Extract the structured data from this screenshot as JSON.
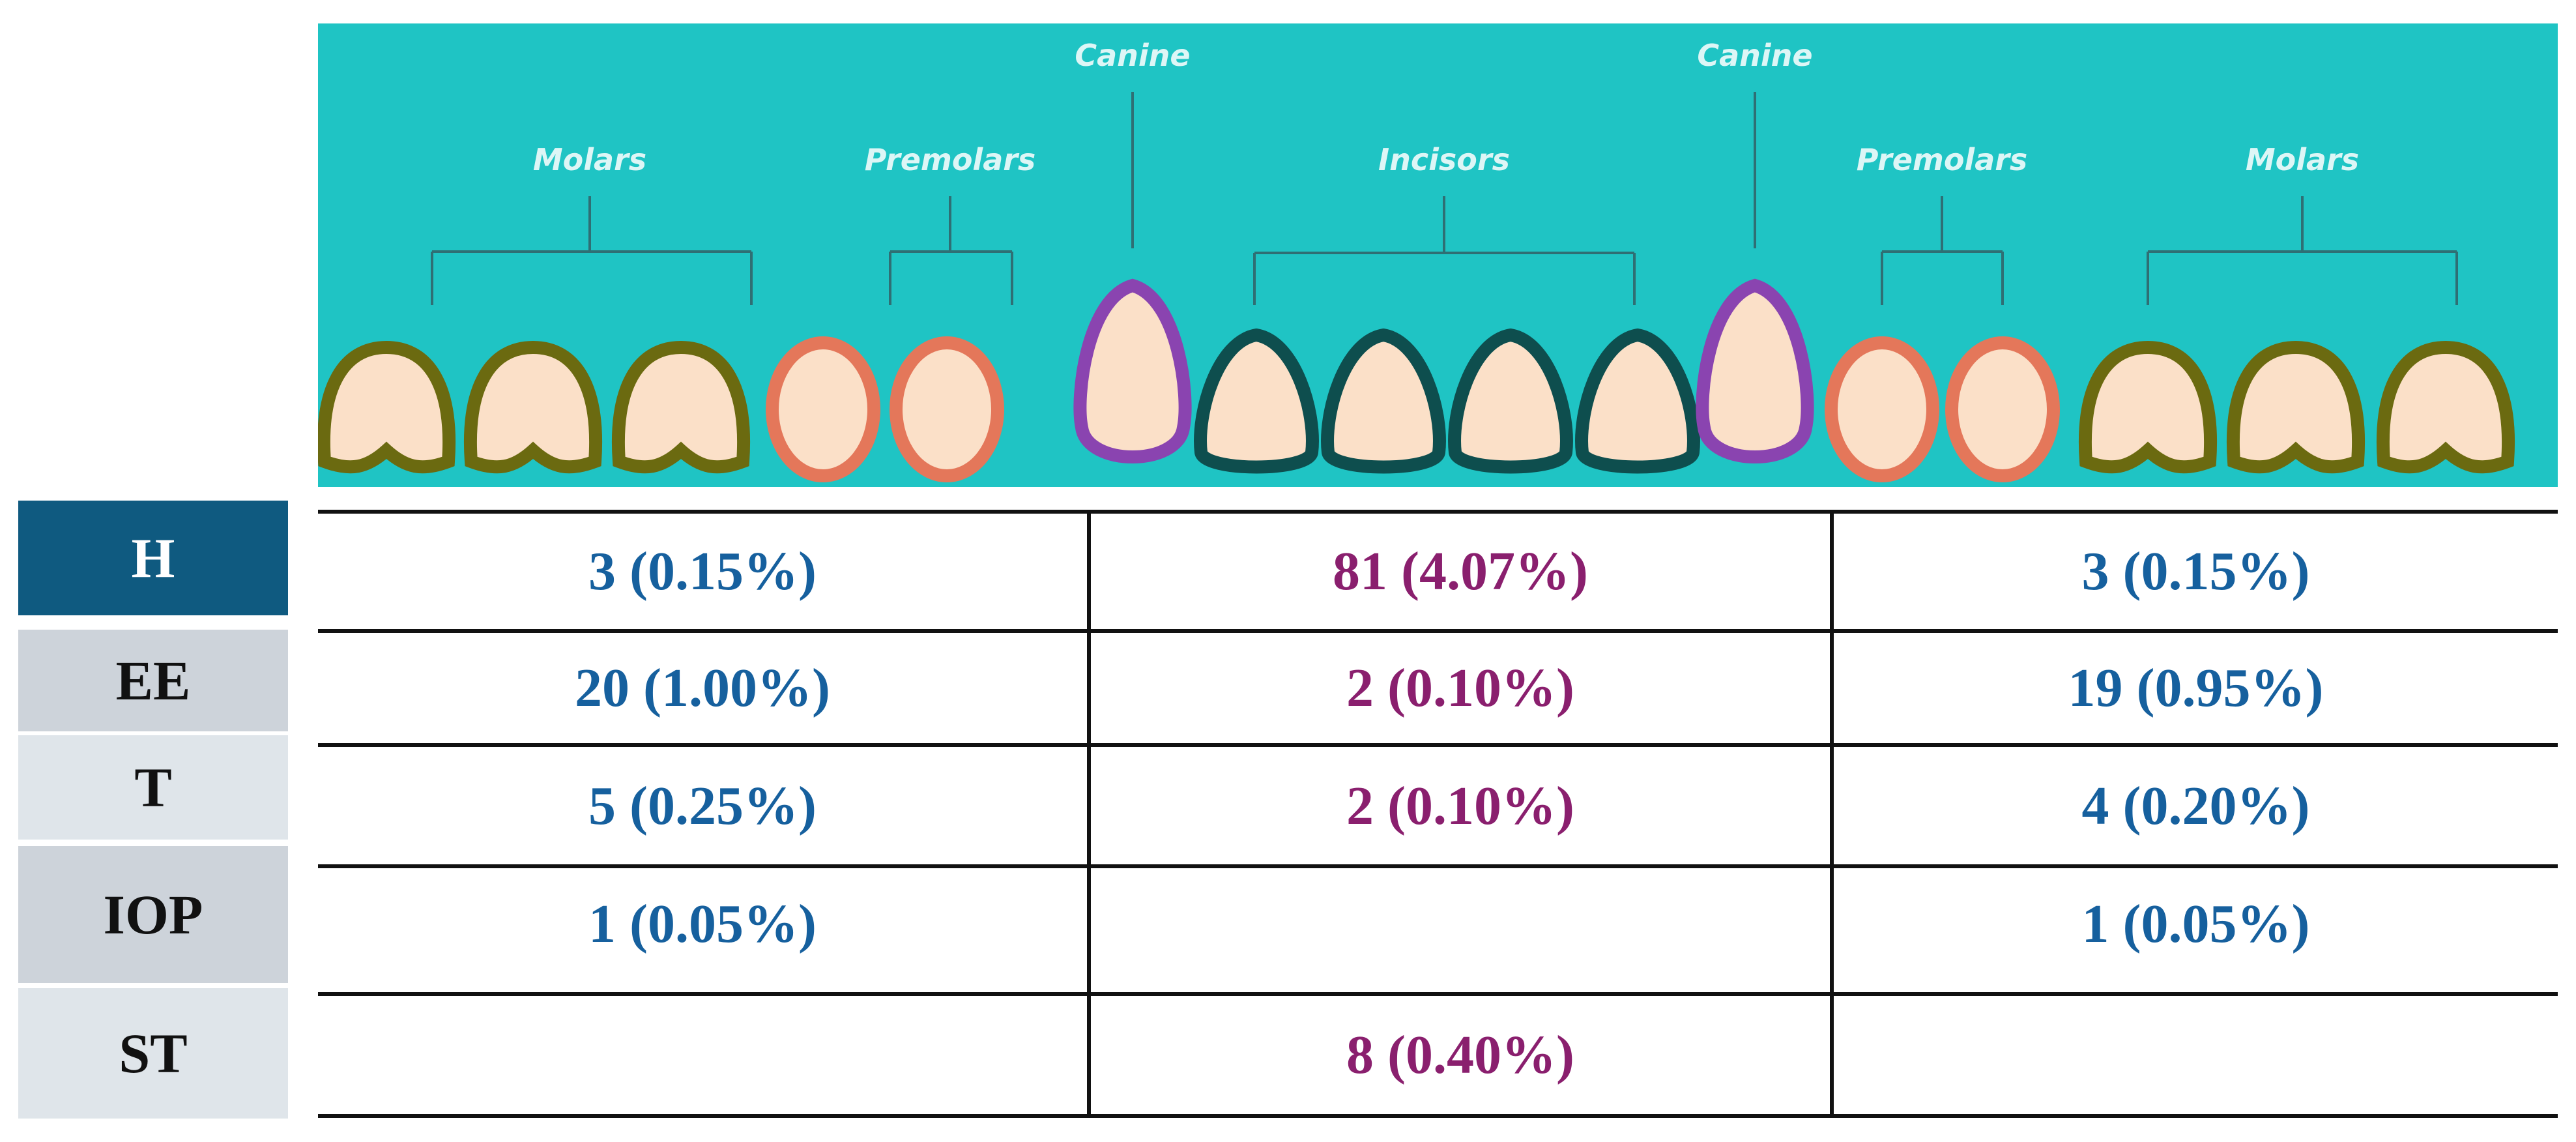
{
  "tooth_groups": {
    "left_molars": "Molars",
    "left_premolars": "Premolars",
    "left_canine": "Canine",
    "incisors": "Incisors",
    "right_canine": "Canine",
    "right_premolars": "Premolars",
    "right_molars": "Molars"
  },
  "colors": {
    "banner": "#1fc4c4",
    "molar_outline": "#6b6a10",
    "premolar_outline": "#e4775a",
    "canine_outline": "#8a44b0",
    "incisor_outline": "#0e4e4e",
    "tooth_fill": "#fbe0c8",
    "posterior_value": "#16609e",
    "anterior_value": "#8a1f6e",
    "header_dark": "#0f5a80"
  },
  "rows": [
    {
      "label": "H",
      "posterior_left": "3 (0.15%)",
      "anterior": "81 (4.07%)",
      "posterior_right": "3 (0.15%)"
    },
    {
      "label": "EE",
      "posterior_left": "20 (1.00%)",
      "anterior": "2 (0.10%)",
      "posterior_right": "19 (0.95%)"
    },
    {
      "label": "T",
      "posterior_left": "5 (0.25%)",
      "anterior": "2 (0.10%)",
      "posterior_right": "4 (0.20%)"
    },
    {
      "label": "IOP",
      "posterior_left": "1 (0.05%)",
      "anterior": "",
      "posterior_right": "1 (0.05%)"
    },
    {
      "label": "ST",
      "posterior_left": "",
      "anterior": "8 (0.40%)",
      "posterior_right": ""
    }
  ]
}
